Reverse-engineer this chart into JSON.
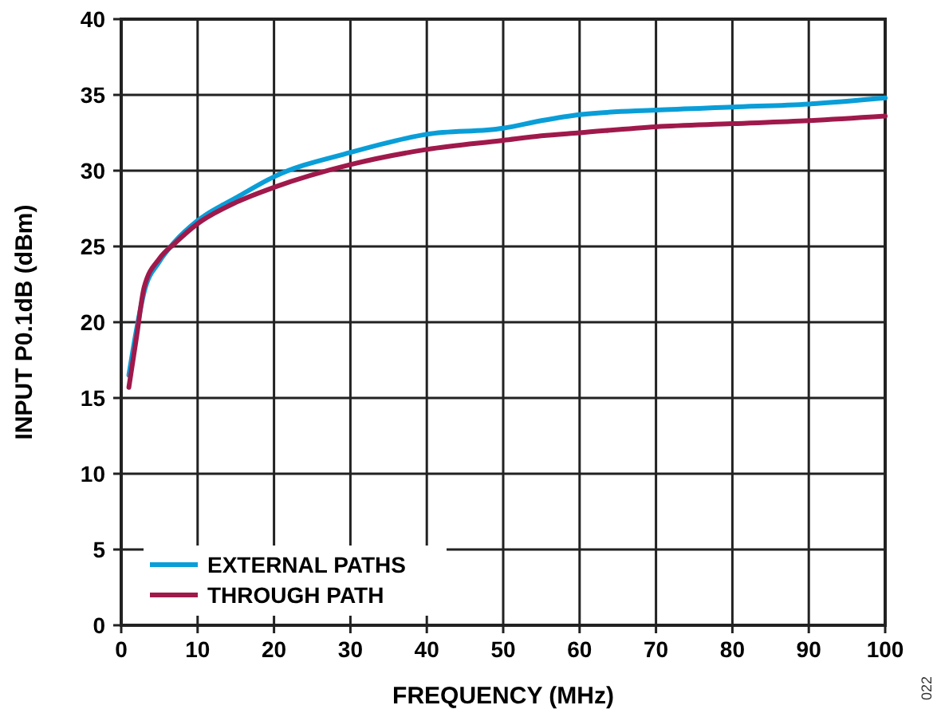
{
  "chart_data": {
    "type": "line",
    "xlabel": "FREQUENCY (MHz)",
    "ylabel": "INPUT P0.1dB (dBm)",
    "x": [
      1,
      2,
      3,
      5,
      7,
      10,
      15,
      20,
      30,
      40,
      50,
      55,
      60,
      70,
      80,
      90,
      100
    ],
    "series": [
      {
        "name": "EXTERNAL PATHS",
        "color": "#0a9ed8",
        "values": [
          16.5,
          19.5,
          22,
          24,
          25.3,
          26.7,
          28.2,
          29.6,
          31.2,
          32.4,
          32.8,
          33.3,
          33.7,
          34.0,
          34.2,
          34.4,
          34.8
        ]
      },
      {
        "name": "THROUGH PATH",
        "color": "#a0194b",
        "values": [
          15.7,
          19,
          22.3,
          24.2,
          25.2,
          26.5,
          27.9,
          28.9,
          30.4,
          31.4,
          32.0,
          32.3,
          32.5,
          32.9,
          33.1,
          33.3,
          33.6
        ]
      }
    ],
    "xlim": [
      0,
      100
    ],
    "xticks": [
      0,
      10,
      20,
      30,
      40,
      50,
      60,
      70,
      80,
      90,
      100
    ],
    "ylim": [
      0,
      40
    ],
    "yticks": [
      0,
      5,
      10,
      15,
      20,
      25,
      30,
      35,
      40
    ],
    "grid": true,
    "legend": "bottom left",
    "marker": "none",
    "line_style": "solid",
    "annotations": [
      "022"
    ]
  }
}
